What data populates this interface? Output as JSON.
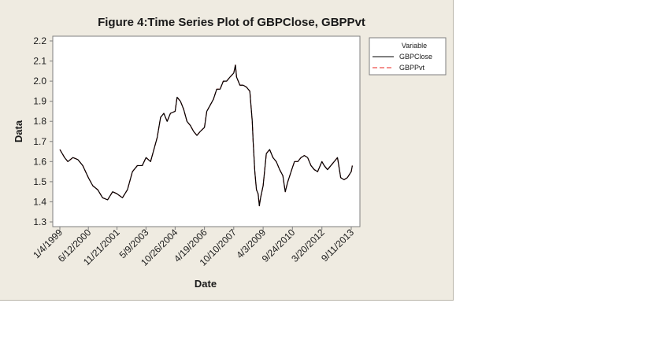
{
  "chart_data": {
    "type": "line",
    "title": "Figure 4:Time Series Plot of GBPClose, GBPPvt",
    "xlabel": "Date",
    "ylabel": "Data",
    "ylim": [
      1.3,
      2.2
    ],
    "y_ticks": [
      "1.3",
      "1.4",
      "1.5",
      "1.6",
      "1.7",
      "1.8",
      "1.9",
      "2.0",
      "2.1",
      "2.2"
    ],
    "x_ticks": [
      "1/4/1999",
      "6/12/2000",
      "11/21/2001",
      "5/9/2003",
      "10/26/2004",
      "4/19/2006",
      "10/10/2007",
      "4/3/2009",
      "9/24/2010",
      "3/20/2012",
      "9/11/2013"
    ],
    "grid": false,
    "legend": {
      "title": "Variable",
      "position": "right",
      "entries": [
        "GBPClose",
        "GBPPvt"
      ]
    },
    "series": [
      {
        "name": "GBPClose",
        "color": "#000000",
        "style": "solid",
        "x": [
          "1/4/1999",
          "4/1/1999",
          "6/1/1999",
          "9/1/1999",
          "12/1/1999",
          "3/1/2000",
          "6/12/2000",
          "9/1/2000",
          "12/1/2000",
          "3/1/2001",
          "6/1/2001",
          "9/1/2001",
          "11/21/2001",
          "3/1/2002",
          "6/1/2002",
          "9/1/2002",
          "12/1/2002",
          "3/1/2003",
          "5/9/2003",
          "8/1/2003",
          "10/1/2003",
          "12/1/2003",
          "2/1/2004",
          "4/1/2004",
          "6/1/2004",
          "8/1/2004",
          "10/26/2004",
          "12/1/2004",
          "2/1/2005",
          "4/1/2005",
          "6/1/2005",
          "8/1/2005",
          "10/1/2005",
          "12/1/2005",
          "2/1/2006",
          "4/19/2006",
          "6/1/2006",
          "8/1/2006",
          "10/1/2006",
          "12/1/2006",
          "2/1/2007",
          "4/1/2007",
          "6/1/2007",
          "8/1/2007",
          "10/10/2007",
          "11/10/2007",
          "12/1/2007",
          "2/1/2008",
          "4/1/2008",
          "6/1/2008",
          "8/1/2008",
          "9/15/2008",
          "10/1/2008",
          "11/1/2008",
          "12/1/2008",
          "1/1/2009",
          "1/23/2009",
          "2/15/2009",
          "4/3/2009",
          "6/1/2009",
          "8/1/2009",
          "10/1/2009",
          "12/1/2009",
          "2/1/2010",
          "4/1/2010",
          "5/15/2010",
          "7/1/2010",
          "9/24/2010",
          "11/1/2010",
          "1/1/2011",
          "3/1/2011",
          "5/1/2011",
          "7/1/2011",
          "9/1/2011",
          "11/1/2011",
          "1/1/2012",
          "3/20/2012",
          "5/1/2012",
          "7/1/2012",
          "9/1/2012",
          "11/1/2012",
          "1/1/2013",
          "3/1/2013",
          "5/1/2013",
          "7/1/2013",
          "9/11/2013",
          "10/1/2013"
        ],
        "values": [
          1.66,
          1.62,
          1.6,
          1.62,
          1.61,
          1.58,
          1.52,
          1.48,
          1.46,
          1.42,
          1.41,
          1.45,
          1.44,
          1.42,
          1.46,
          1.55,
          1.58,
          1.58,
          1.62,
          1.6,
          1.66,
          1.72,
          1.82,
          1.84,
          1.8,
          1.84,
          1.85,
          1.92,
          1.9,
          1.86,
          1.8,
          1.78,
          1.75,
          1.73,
          1.75,
          1.77,
          1.85,
          1.88,
          1.91,
          1.96,
          1.96,
          2.0,
          2.0,
          2.02,
          2.04,
          2.08,
          2.02,
          1.98,
          1.98,
          1.97,
          1.95,
          1.8,
          1.7,
          1.55,
          1.46,
          1.44,
          1.38,
          1.42,
          1.48,
          1.64,
          1.66,
          1.62,
          1.6,
          1.56,
          1.53,
          1.45,
          1.5,
          1.57,
          1.6,
          1.6,
          1.62,
          1.63,
          1.62,
          1.58,
          1.56,
          1.55,
          1.6,
          1.58,
          1.56,
          1.58,
          1.6,
          1.62,
          1.52,
          1.51,
          1.52,
          1.55,
          1.58
        ]
      },
      {
        "name": "GBPPvt",
        "color": "#e8231e",
        "style": "dashed",
        "x": [
          "1/4/1999",
          "4/1/1999",
          "6/1/1999",
          "9/1/1999",
          "12/1/1999",
          "3/1/2000",
          "6/12/2000",
          "9/1/2000",
          "12/1/2000",
          "3/1/2001",
          "6/1/2001",
          "9/1/2001",
          "11/21/2001",
          "3/1/2002",
          "6/1/2002",
          "9/1/2002",
          "12/1/2002",
          "3/1/2003",
          "5/9/2003",
          "8/1/2003",
          "10/1/2003",
          "12/1/2003",
          "2/1/2004",
          "4/1/2004",
          "6/1/2004",
          "8/1/2004",
          "10/26/2004",
          "12/1/2004",
          "2/1/2005",
          "4/1/2005",
          "6/1/2005",
          "8/1/2005",
          "10/1/2005",
          "12/1/2005",
          "2/1/2006",
          "4/19/2006",
          "6/1/2006",
          "8/1/2006",
          "10/1/2006",
          "12/1/2006",
          "2/1/2007",
          "4/1/2007",
          "6/1/2007",
          "8/1/2007",
          "10/10/2007",
          "11/10/2007",
          "12/1/2007",
          "2/1/2008",
          "4/1/2008",
          "6/1/2008",
          "8/1/2008",
          "9/15/2008",
          "10/1/2008",
          "11/1/2008",
          "12/1/2008",
          "1/1/2009",
          "1/23/2009",
          "2/15/2009",
          "4/3/2009",
          "6/1/2009",
          "8/1/2009",
          "10/1/2009",
          "12/1/2009",
          "2/1/2010",
          "4/1/2010",
          "5/15/2010",
          "7/1/2010",
          "9/24/2010",
          "11/1/2010",
          "1/1/2011",
          "3/1/2011",
          "5/1/2011",
          "7/1/2011",
          "9/1/2011",
          "11/1/2011",
          "1/1/2012",
          "3/20/2012",
          "5/1/2012",
          "7/1/2012",
          "9/1/2012",
          "11/1/2012",
          "1/1/2013",
          "3/1/2013",
          "5/1/2013",
          "7/1/2013",
          "9/11/2013",
          "10/1/2013"
        ],
        "values": [
          1.66,
          1.62,
          1.6,
          1.62,
          1.61,
          1.58,
          1.52,
          1.48,
          1.46,
          1.42,
          1.41,
          1.45,
          1.44,
          1.42,
          1.46,
          1.55,
          1.58,
          1.58,
          1.62,
          1.6,
          1.66,
          1.72,
          1.82,
          1.84,
          1.8,
          1.84,
          1.85,
          1.92,
          1.9,
          1.86,
          1.8,
          1.78,
          1.75,
          1.73,
          1.75,
          1.77,
          1.85,
          1.88,
          1.91,
          1.96,
          1.96,
          2.0,
          2.0,
          2.02,
          2.04,
          2.08,
          2.02,
          1.98,
          1.98,
          1.97,
          1.95,
          1.8,
          1.7,
          1.55,
          1.46,
          1.44,
          1.38,
          1.42,
          1.48,
          1.64,
          1.66,
          1.62,
          1.6,
          1.56,
          1.53,
          1.45,
          1.5,
          1.57,
          1.6,
          1.6,
          1.62,
          1.63,
          1.62,
          1.58,
          1.56,
          1.55,
          1.6,
          1.58,
          1.56,
          1.58,
          1.6,
          1.62,
          1.52,
          1.51,
          1.52,
          1.55,
          1.58
        ]
      }
    ]
  }
}
